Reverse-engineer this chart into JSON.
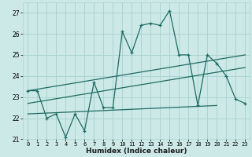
{
  "xlabel": "Humidex (Indice chaleur)",
  "bg_color": "#cce9e7",
  "grid_color": "#aad4d2",
  "line_color": "#1e6b63",
  "xlim": [
    -0.5,
    23.5
  ],
  "ylim": [
    21.0,
    27.5
  ],
  "xticks": [
    0,
    1,
    2,
    3,
    4,
    5,
    6,
    7,
    8,
    9,
    10,
    11,
    12,
    13,
    14,
    15,
    16,
    17,
    18,
    19,
    20,
    21,
    22,
    23
  ],
  "yticks": [
    21,
    22,
    23,
    24,
    25,
    26,
    27
  ],
  "main_x": [
    0,
    1,
    2,
    3,
    4,
    5,
    6,
    7,
    8,
    9,
    10,
    11,
    12,
    13,
    14,
    15,
    16,
    17,
    18,
    19,
    20,
    21,
    22,
    23
  ],
  "main_y": [
    23.3,
    23.3,
    22.0,
    22.2,
    21.1,
    22.2,
    21.4,
    23.7,
    22.5,
    22.5,
    26.1,
    25.1,
    26.4,
    26.5,
    26.4,
    27.1,
    25.0,
    25.0,
    22.6,
    25.0,
    24.6,
    24.0,
    22.9,
    22.7
  ],
  "line1_x": [
    0,
    23
  ],
  "line1_y": [
    23.3,
    25.0
  ],
  "line2_x": [
    0,
    23
  ],
  "line2_y": [
    22.7,
    24.4
  ],
  "line3_x": [
    0,
    20
  ],
  "line3_y": [
    22.2,
    22.6
  ],
  "xtick_fontsize": 5.0,
  "ytick_fontsize": 5.5,
  "xlabel_fontsize": 6.5
}
